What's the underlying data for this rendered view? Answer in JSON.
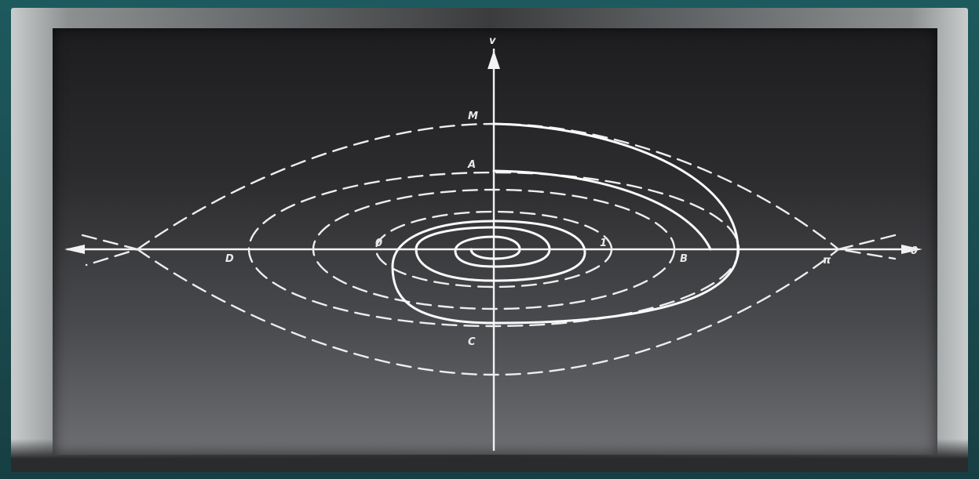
{
  "diagram": {
    "labels": {
      "y_axis": "v",
      "x_axis": "θ",
      "top_separatrix": "M",
      "orbit_top": "A",
      "orbit_bottom": "C",
      "orbit_left": "D",
      "orbit_right": "B",
      "separatrix_point": "π",
      "inner_right": "1",
      "inner_left": "0"
    },
    "colors": {
      "screen_top": "#1d1d1f",
      "screen_bottom": "#6e6f72",
      "lines": "#f2f2f2",
      "frame": "#1d5a5d"
    }
  }
}
